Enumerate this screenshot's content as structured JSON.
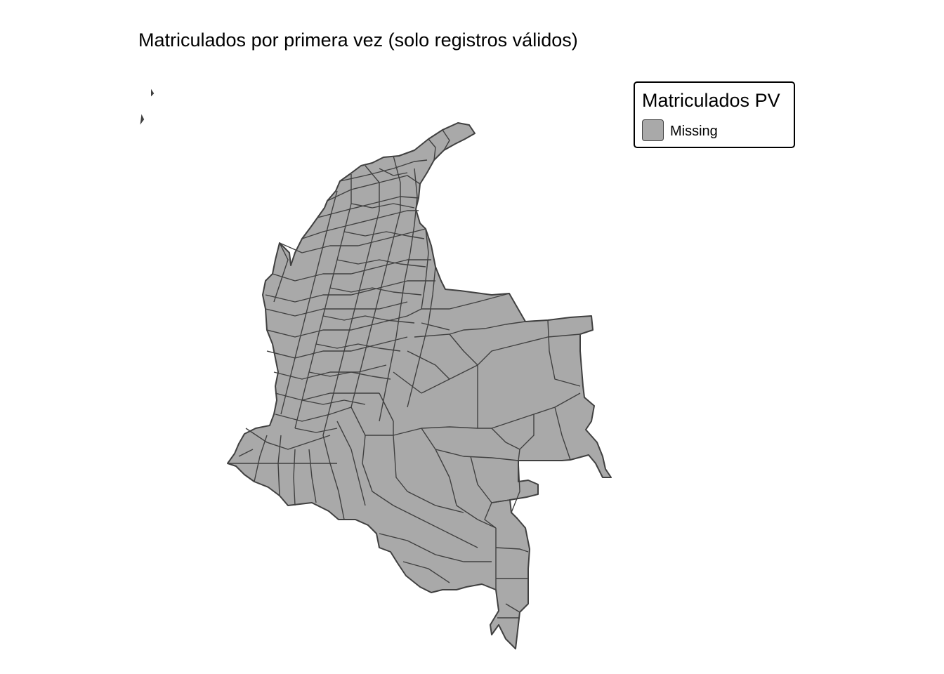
{
  "map": {
    "title": "Matriculados por primera vez (solo registros válidos)",
    "region": "Colombia",
    "unit": "municipios",
    "fill_color": "#A9A9A9",
    "border_color": "#404040"
  },
  "legend": {
    "title": "Matriculados PV",
    "items": [
      {
        "label": "Missing",
        "color": "#A9A9A9"
      }
    ]
  }
}
